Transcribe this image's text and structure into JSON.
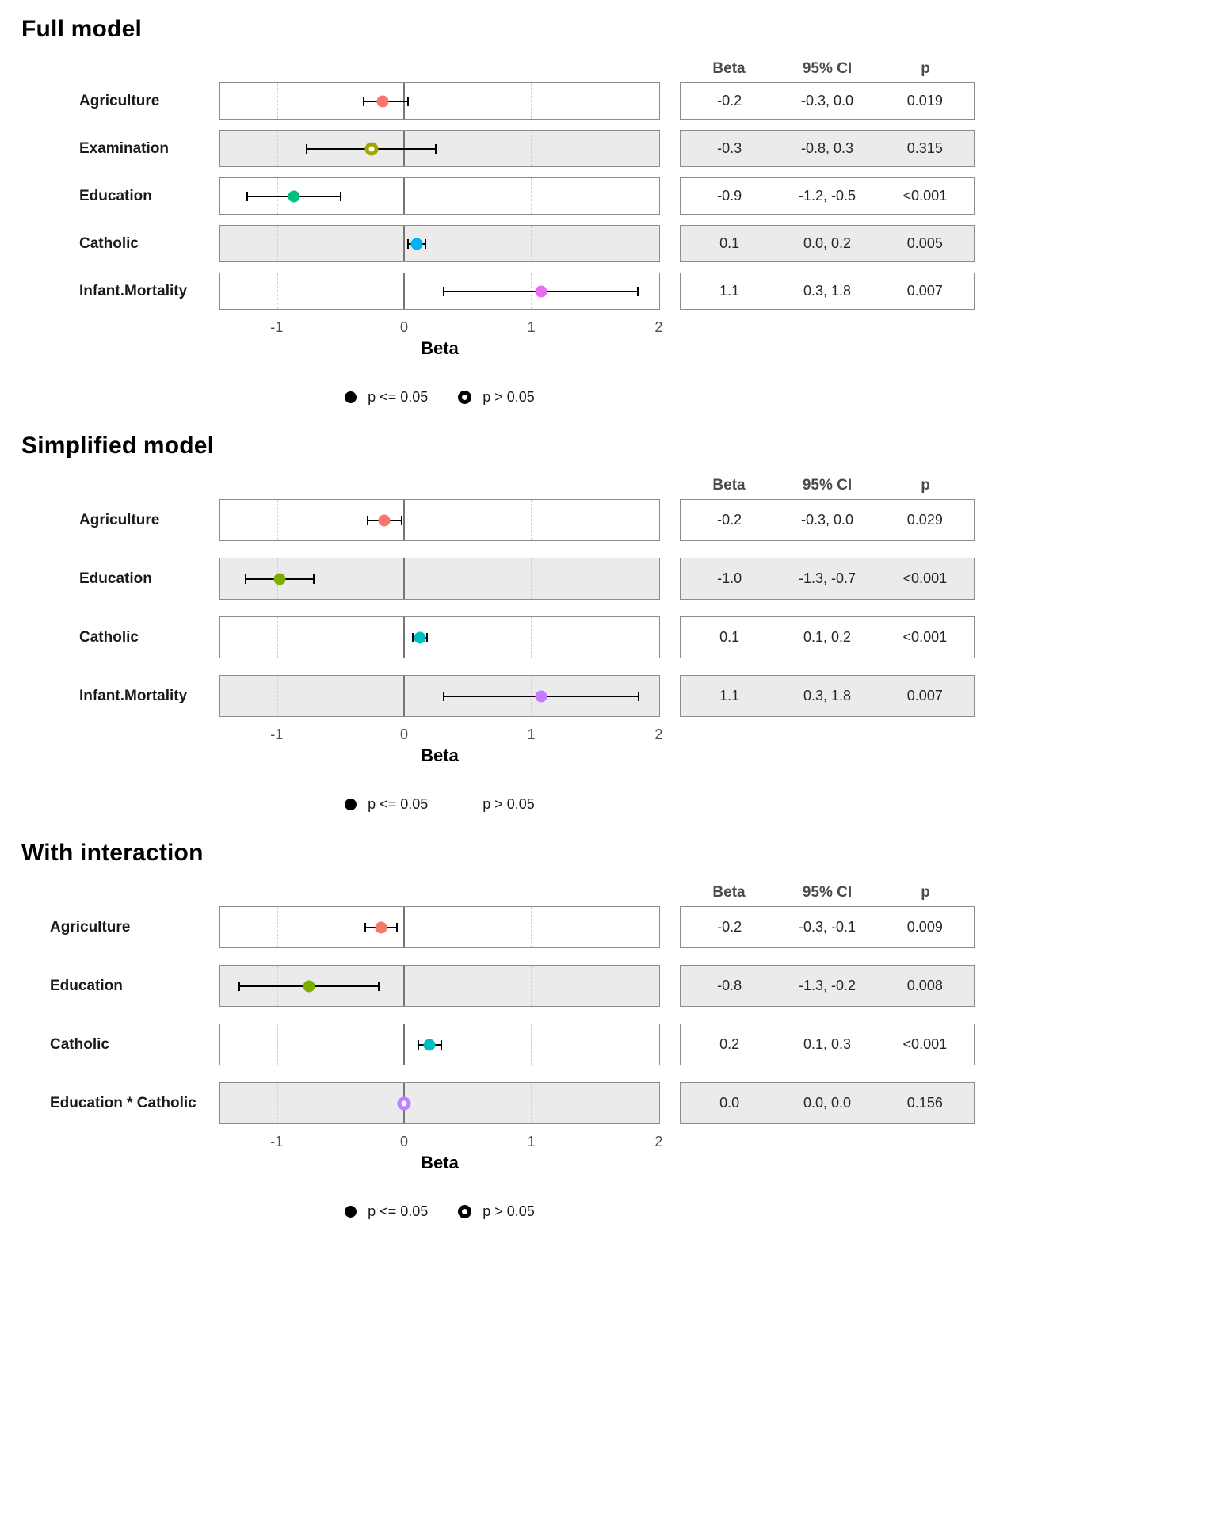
{
  "shared": {
    "table_headers": [
      "Beta",
      "95% CI",
      "p"
    ],
    "x_axis": {
      "label": "Beta",
      "ticks": [
        "-1",
        "0",
        "1",
        "2"
      ],
      "tick_values": [
        -1,
        0,
        1,
        2
      ],
      "range": [
        -1.45,
        2.01
      ],
      "dashed_gridlines": [
        -1,
        1
      ],
      "solid_reference_line": 0
    },
    "legend": {
      "filled_label": "p <= 0.05",
      "open_label": "p > 0.05"
    },
    "colors": {
      "stripe": "#ebebeb",
      "panel_border": "#8c8c8c",
      "reference_line": "#767676",
      "gridline": "#cfcfcf",
      "ci_line": "#000000"
    }
  },
  "chart_data": [
    {
      "type": "scatter",
      "subtype": "forest-plot",
      "title": "Full model",
      "xlabel": "Beta",
      "xlim": [
        -1.45,
        2.01
      ],
      "xticks": [
        -1,
        0,
        1,
        2
      ],
      "legend_show_open_marker": true,
      "rows": [
        {
          "label": "Agriculture",
          "estimate": -0.17,
          "ci_low": -0.32,
          "ci_high": 0.03,
          "color": "#F8766D",
          "open_marker": false,
          "beta": "-0.2",
          "ci": "-0.3, 0.0",
          "p": "0.019"
        },
        {
          "label": "Examination",
          "estimate": -0.26,
          "ci_low": -0.77,
          "ci_high": 0.25,
          "color": "#A3A500",
          "open_marker": true,
          "beta": "-0.3",
          "ci": "-0.8, 0.3",
          "p": "0.315"
        },
        {
          "label": "Education",
          "estimate": -0.87,
          "ci_low": -1.24,
          "ci_high": -0.5,
          "color": "#00BF7D",
          "open_marker": false,
          "beta": "-0.9",
          "ci": "-1.2, -0.5",
          "p": "<0.001"
        },
        {
          "label": "Catholic",
          "estimate": 0.1,
          "ci_low": 0.03,
          "ci_high": 0.17,
          "color": "#00B0F6",
          "open_marker": false,
          "beta": "0.1",
          "ci": "0.0, 0.2",
          "p": "0.005"
        },
        {
          "label": "Infant.Mortality",
          "estimate": 1.08,
          "ci_low": 0.31,
          "ci_high": 1.84,
          "color": "#E76BF3",
          "open_marker": false,
          "beta": "1.1",
          "ci": "0.3, 1.8",
          "p": "0.007"
        }
      ]
    },
    {
      "type": "scatter",
      "subtype": "forest-plot",
      "title": "Simplified model",
      "xlabel": "Beta",
      "xlim": [
        -1.45,
        2.01
      ],
      "xticks": [
        -1,
        0,
        1,
        2
      ],
      "legend_show_open_marker": false,
      "rows": [
        {
          "label": "Agriculture",
          "estimate": -0.155,
          "ci_low": -0.29,
          "ci_high": -0.02,
          "color": "#F8766D",
          "open_marker": false,
          "beta": "-0.2",
          "ci": "-0.3, 0.0",
          "p": "0.029"
        },
        {
          "label": "Education",
          "estimate": -0.98,
          "ci_low": -1.25,
          "ci_high": -0.71,
          "color": "#7CAE00",
          "open_marker": false,
          "beta": "-1.0",
          "ci": "-1.3, -0.7",
          "p": "<0.001"
        },
        {
          "label": "Catholic",
          "estimate": 0.125,
          "ci_low": 0.07,
          "ci_high": 0.18,
          "color": "#00BFC4",
          "open_marker": false,
          "beta": "0.1",
          "ci": "0.1, 0.2",
          "p": "<0.001"
        },
        {
          "label": "Infant.Mortality",
          "estimate": 1.08,
          "ci_low": 0.31,
          "ci_high": 1.85,
          "color": "#C77CFF",
          "open_marker": false,
          "beta": "1.1",
          "ci": "0.3, 1.8",
          "p": "0.007"
        }
      ]
    },
    {
      "type": "scatter",
      "subtype": "forest-plot",
      "title": "With interaction",
      "xlabel": "Beta",
      "xlim": [
        -1.45,
        2.01
      ],
      "xticks": [
        -1,
        0,
        1,
        2
      ],
      "legend_show_open_marker": true,
      "rows": [
        {
          "label": "Agriculture",
          "estimate": -0.18,
          "ci_low": -0.31,
          "ci_high": -0.06,
          "color": "#F8766D",
          "open_marker": false,
          "beta": "-0.2",
          "ci": "-0.3, -0.1",
          "p": "0.009"
        },
        {
          "label": "Education",
          "estimate": -0.75,
          "ci_low": -1.3,
          "ci_high": -0.2,
          "color": "#7CAE00",
          "open_marker": false,
          "beta": "-0.8",
          "ci": "-1.3, -0.2",
          "p": "0.008"
        },
        {
          "label": "Catholic",
          "estimate": 0.2,
          "ci_low": 0.11,
          "ci_high": 0.29,
          "color": "#00BFC4",
          "open_marker": false,
          "beta": "0.2",
          "ci": "0.1, 0.3",
          "p": "<0.001"
        },
        {
          "label": "Education * Catholic",
          "estimate": 0.0,
          "ci_low": 0.0,
          "ci_high": 0.0,
          "color": "#C77CFF",
          "open_marker": true,
          "beta": "0.0",
          "ci": "0.0, 0.0",
          "p": "0.156"
        }
      ]
    }
  ]
}
